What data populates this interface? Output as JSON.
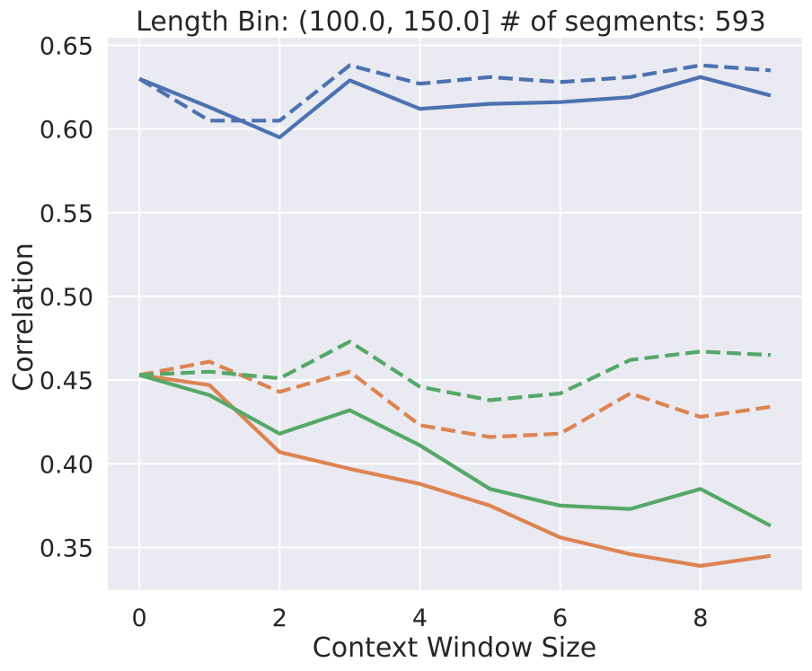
{
  "chart_data": {
    "type": "line",
    "title": "Length Bin: (100.0, 150.0] # of segments: 593",
    "xlabel": "Context Window Size",
    "ylabel": "Correlation",
    "xlim": [
      -0.45,
      9.45
    ],
    "ylim": [
      0.3245,
      0.6545
    ],
    "xticks": [
      0,
      2,
      4,
      6,
      8
    ],
    "xtick_labels": [
      "0",
      "2",
      "4",
      "6",
      "8"
    ],
    "yticks": [
      0.35,
      0.4,
      0.45,
      0.5,
      0.55,
      0.6,
      0.65
    ],
    "ytick_labels": [
      "0.35",
      "0.40",
      "0.45",
      "0.50",
      "0.55",
      "0.60",
      "0.65"
    ],
    "grid": true,
    "background": "#eaeaf2",
    "x": [
      0,
      1,
      2,
      3,
      4,
      5,
      6,
      7,
      8,
      9
    ],
    "series": [
      {
        "color": "#4c72b0",
        "style": "solid",
        "values": [
          0.63,
          0.613,
          0.595,
          0.629,
          0.612,
          0.615,
          0.616,
          0.619,
          0.631,
          0.62
        ]
      },
      {
        "color": "#4c72b0",
        "style": "dashed",
        "values": [
          0.63,
          0.605,
          0.605,
          0.638,
          0.627,
          0.631,
          0.628,
          0.631,
          0.638,
          0.635
        ]
      },
      {
        "color": "#dd8452",
        "style": "solid",
        "values": [
          0.453,
          0.447,
          0.407,
          0.397,
          0.388,
          0.375,
          0.356,
          0.346,
          0.339,
          0.345
        ]
      },
      {
        "color": "#dd8452",
        "style": "dashed",
        "values": [
          0.453,
          0.461,
          0.443,
          0.455,
          0.423,
          0.416,
          0.418,
          0.442,
          0.428,
          0.434
        ]
      },
      {
        "color": "#55a868",
        "style": "solid",
        "values": [
          0.453,
          0.441,
          0.418,
          0.432,
          0.411,
          0.385,
          0.375,
          0.373,
          0.385,
          0.363
        ]
      },
      {
        "color": "#55a868",
        "style": "dashed",
        "values": [
          0.453,
          0.455,
          0.451,
          0.473,
          0.446,
          0.438,
          0.442,
          0.462,
          0.467,
          0.465
        ]
      }
    ]
  }
}
